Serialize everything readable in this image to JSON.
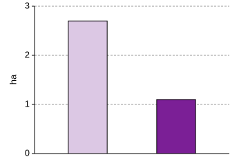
{
  "chart_data": {
    "type": "bar",
    "y_label": "ha",
    "categories": [
      null,
      null
    ],
    "values": [
      2.7,
      1.1
    ],
    "colors": [
      "#dcc8e4",
      "#7b1f96"
    ],
    "ylim": [
      0,
      3
    ],
    "yticks": [
      0,
      1,
      2,
      3
    ],
    "grid": true
  }
}
